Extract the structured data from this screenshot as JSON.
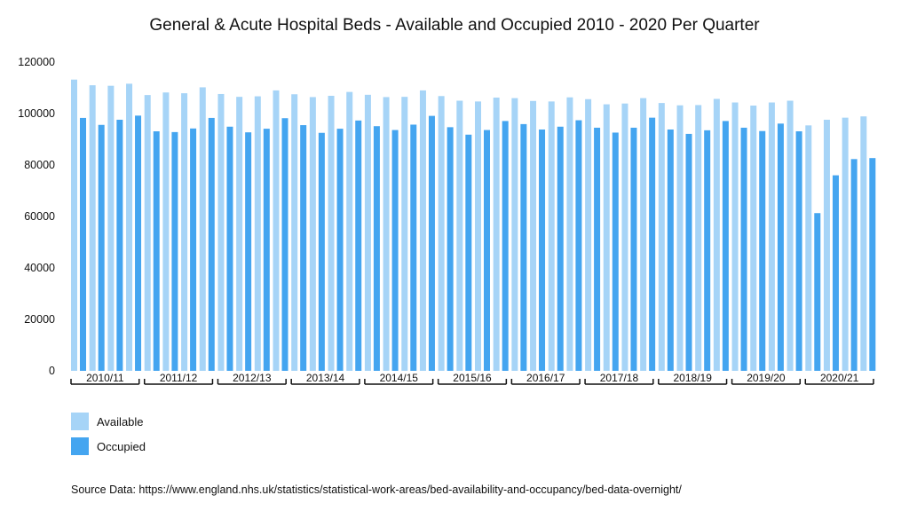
{
  "chart_data": {
    "type": "bar",
    "title": "General & Acute Hospital Beds - Available and Occupied 2010 - 2020 Per Quarter",
    "ylim": [
      0,
      120000
    ],
    "yticks": [
      "0",
      "20000",
      "40000",
      "60000",
      "80000",
      "100000",
      "120000"
    ],
    "years": [
      "2010/11",
      "2011/12",
      "2012/13",
      "2013/14",
      "2014/15",
      "2015/16",
      "2016/17",
      "2017/18",
      "2018/19",
      "2019/20",
      "2020/21"
    ],
    "quarters_per_year": 4,
    "series": [
      {
        "name": "Available",
        "color": "#a6d4f7",
        "values": [
          113200,
          111000,
          110800,
          111600,
          107200,
          108200,
          107900,
          110200,
          107600,
          106500,
          106700,
          109000,
          107500,
          106400,
          106900,
          108400,
          107300,
          106400,
          106500,
          109000,
          106800,
          105000,
          104700,
          106200,
          106000,
          104900,
          104700,
          106300,
          105600,
          103600,
          103900,
          106000,
          104100,
          103200,
          103300,
          105700,
          104300,
          103100,
          104300,
          105000,
          95400,
          97600,
          98400,
          98900
        ]
      },
      {
        "name": "Occupied",
        "color": "#44a5f0",
        "values": [
          98300,
          95600,
          97600,
          99200,
          93100,
          92800,
          94200,
          98300,
          94900,
          92700,
          94100,
          98200,
          95500,
          92500,
          94100,
          97300,
          95100,
          93600,
          95700,
          99100,
          94700,
          91800,
          93600,
          97100,
          95900,
          93800,
          94900,
          97400,
          94500,
          92600,
          94500,
          98400,
          93800,
          92100,
          93500,
          97100,
          94500,
          93200,
          96100,
          93100,
          61300,
          76000,
          82300,
          82700
        ]
      }
    ],
    "legend_position": "bottom-left",
    "grid": false
  },
  "source_note": "Source Data: https://www.england.nhs.uk/statistics/statistical-work-areas/bed-availability-and-occupancy/bed-data-overnight/"
}
